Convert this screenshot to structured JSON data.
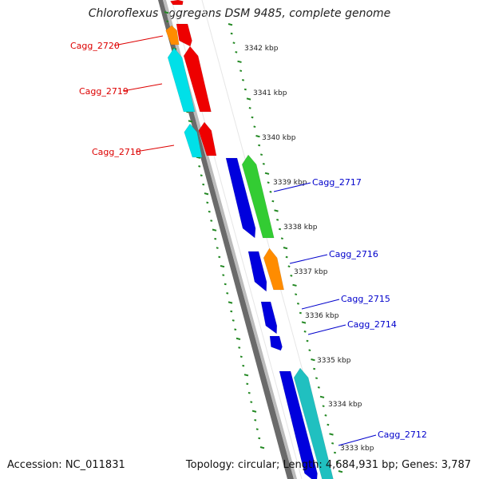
{
  "title": "Chloroflexus aggregans DSM 9485, complete genome",
  "accession_text": "Accession: NC_011831",
  "summary_text": "Topology: circular; Length: 4,684,931 bp; Genes: 3,787",
  "scale_labels": [
    "3342 kbp",
    "3341 kbp",
    "3340 kbp",
    "3339 kbp",
    "3338 kbp",
    "3337 kbp",
    "3336 kbp",
    "3335 kbp",
    "3334 kbp",
    "3333 kbp"
  ],
  "gene_labels": [
    {
      "text": "Cagg_2720",
      "color": "#dd0000"
    },
    {
      "text": "Cagg_2719",
      "color": "#dd0000"
    },
    {
      "text": "Cagg_2718",
      "color": "#dd0000"
    },
    {
      "text": "Cagg_2717",
      "color": "#0000cc"
    },
    {
      "text": "Cagg_2716",
      "color": "#0000cc"
    },
    {
      "text": "Cagg_2715",
      "color": "#0000cc"
    },
    {
      "text": "Cagg_2714",
      "color": "#0000cc"
    },
    {
      "text": "Cagg_2712",
      "color": "#0000cc"
    }
  ],
  "colors": {
    "backbone": "#888888",
    "reverse_strand": "#ee0000",
    "forward_strand": "#0000dd",
    "cyan": "#00e0e8",
    "orange": "#ff8c00",
    "green": "#33cc33",
    "teal": "#20c0c0",
    "ticks": "#228822"
  }
}
